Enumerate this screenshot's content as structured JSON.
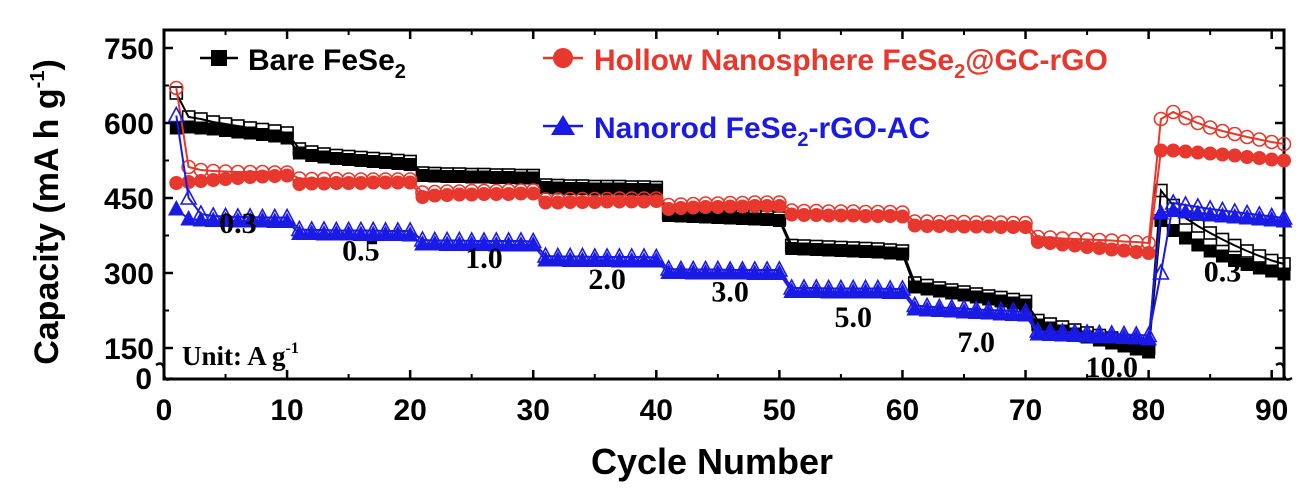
{
  "chart_data": {
    "type": "scatter",
    "xlabel": "Cycle Number",
    "ylabel": "Capacity (mA h g",
    "ylabel_sup": "-1",
    "ylabel_end": ")",
    "xlim": [
      0,
      91
    ],
    "ylim_upper": [
      100,
      800
    ],
    "x_ticks": [
      0,
      10,
      20,
      30,
      40,
      50,
      60,
      70,
      80,
      90
    ],
    "x_tick_labels": [
      "0",
      "10",
      "20",
      "30",
      "40",
      "50",
      "60",
      "70",
      "80",
      "90"
    ],
    "y_ticks": [
      150,
      300,
      450,
      600,
      750
    ],
    "y_tick_labels": [
      "150",
      "300",
      "450",
      "600",
      "750"
    ],
    "y_zero_label": "0",
    "axis_break": true,
    "grid": false,
    "legend_position": "top",
    "unit_label": {
      "prefix": "Unit: A g",
      "sup": "-1"
    },
    "rate_labels": [
      {
        "text": "0.3",
        "x": 6,
        "y": 380
      },
      {
        "text": "0.5",
        "x": 16,
        "y": 325
      },
      {
        "text": "1.0",
        "x": 26,
        "y": 310
      },
      {
        "text": "2.0",
        "x": 36,
        "y": 268
      },
      {
        "text": "3.0",
        "x": 46,
        "y": 243
      },
      {
        "text": "5.0",
        "x": 56,
        "y": 192
      },
      {
        "text": "7.0",
        "x": 66,
        "y": 142
      },
      {
        "text": "10.0",
        "x": 77,
        "y": 92
      },
      {
        "text": "0.3",
        "x": 86,
        "y": 283
      }
    ],
    "series": [
      {
        "name": "Bare FeSe",
        "name_sub": "2",
        "name_suffix": "",
        "marker": "square",
        "color": "#000000",
        "label_color": "#000000",
        "charge": [
          660,
          612,
          608,
          602,
          598,
          594,
          590,
          587,
          584,
          580,
          548,
          542,
          538,
          535,
          533,
          531,
          529,
          527,
          525,
          523,
          500,
          499,
          498,
          498,
          497,
          497,
          496,
          496,
          495,
          495,
          476,
          475,
          474,
          474,
          473,
          473,
          473,
          472,
          472,
          471,
          420,
          419,
          418,
          417,
          416,
          415,
          414,
          413,
          412,
          410,
          355,
          354,
          353,
          352,
          351,
          350,
          349,
          348,
          346,
          344,
          280,
          275,
          270,
          266,
          262,
          258,
          254,
          251,
          247,
          243,
          205,
          198,
          192,
          186,
          180,
          175,
          170,
          164,
          158,
          150,
          465,
          435,
          410,
          394,
          380,
          367,
          355,
          344,
          334,
          325,
          318
        ],
        "discharge": [
          590,
          592,
          590,
          588,
          585,
          582,
          580,
          577,
          574,
          570,
          540,
          535,
          532,
          529,
          527,
          525,
          523,
          521,
          519,
          517,
          495,
          494,
          493,
          493,
          492,
          492,
          491,
          491,
          490,
          490,
          471,
          470,
          469,
          469,
          468,
          468,
          468,
          467,
          467,
          466,
          415,
          414,
          413,
          412,
          411,
          410,
          409,
          408,
          407,
          405,
          349,
          348,
          347,
          346,
          345,
          344,
          343,
          342,
          340,
          338,
          272,
          268,
          264,
          260,
          256,
          252,
          248,
          244,
          240,
          236,
          196,
          190,
          184,
          178,
          172,
          166,
          160,
          154,
          148,
          142,
          405,
          385,
          370,
          356,
          344,
          334,
          325,
          317,
          310,
          304,
          298
        ]
      },
      {
        "name": "Hollow Nanosphere FeSe",
        "name_sub": "2",
        "name_suffix": "@GC-rGO",
        "marker": "circle",
        "color": "#e8372c",
        "label_color": "#e8372c",
        "charge": [
          670,
          512,
          506,
          504,
          503,
          502,
          502,
          502,
          501,
          501,
          489,
          488,
          488,
          488,
          487,
          487,
          487,
          487,
          487,
          487,
          461,
          462,
          463,
          463,
          464,
          464,
          464,
          465,
          465,
          465,
          447,
          447,
          448,
          448,
          448,
          448,
          449,
          449,
          449,
          449,
          436,
          437,
          438,
          439,
          439,
          440,
          440,
          441,
          441,
          441,
          425,
          424,
          424,
          423,
          423,
          423,
          422,
          422,
          422,
          421,
          403,
          403,
          402,
          402,
          402,
          401,
          401,
          401,
          400,
          400,
          372,
          371,
          369,
          368,
          367,
          366,
          365,
          363,
          362,
          360,
          608,
          622,
          610,
          600,
          591,
          584,
          578,
          572,
          567,
          562,
          558
        ],
        "discharge": [
          480,
          482,
          484,
          486,
          488,
          490,
          492,
          493,
          494,
          495,
          478,
          479,
          479,
          480,
          480,
          480,
          481,
          481,
          481,
          481,
          452,
          455,
          456,
          457,
          457,
          458,
          458,
          458,
          459,
          459,
          441,
          441,
          442,
          442,
          442,
          443,
          443,
          443,
          443,
          444,
          428,
          430,
          431,
          432,
          432,
          433,
          433,
          434,
          434,
          434,
          417,
          416,
          416,
          415,
          415,
          415,
          414,
          414,
          414,
          413,
          395,
          394,
          394,
          394,
          393,
          393,
          393,
          392,
          392,
          392,
          362,
          360,
          357,
          355,
          352,
          350,
          347,
          345,
          342,
          340,
          545,
          545,
          543,
          541,
          539,
          537,
          535,
          532,
          530,
          527,
          525
        ]
      },
      {
        "name": "Nanorod FeSe",
        "name_sub": "2",
        "name_suffix": "-rGO-AC",
        "marker": "triangle",
        "color": "#1a1ae6",
        "label_color": "#1a1ae6",
        "charge": [
          615,
          450,
          418,
          414,
          413,
          412,
          412,
          411,
          411,
          411,
          387,
          386,
          386,
          385,
          385,
          385,
          385,
          384,
          384,
          384,
          366,
          365,
          365,
          365,
          364,
          364,
          364,
          364,
          364,
          363,
          334,
          333,
          333,
          333,
          332,
          332,
          332,
          332,
          332,
          331,
          308,
          307,
          307,
          307,
          307,
          306,
          306,
          306,
          306,
          306,
          270,
          270,
          270,
          269,
          269,
          269,
          269,
          269,
          268,
          268,
          235,
          233,
          231,
          230,
          229,
          227,
          226,
          225,
          224,
          222,
          184,
          183,
          182,
          181,
          180,
          179,
          178,
          177,
          176,
          175,
          300,
          440,
          436,
          432,
          428,
          425,
          422,
          419,
          416,
          413,
          410
        ],
        "discharge": [
          428,
          408,
          406,
          405,
          405,
          404,
          404,
          404,
          403,
          403,
          379,
          379,
          378,
          378,
          378,
          377,
          377,
          377,
          377,
          376,
          358,
          358,
          357,
          357,
          357,
          357,
          356,
          356,
          356,
          356,
          326,
          326,
          325,
          325,
          325,
          325,
          324,
          324,
          324,
          324,
          301,
          301,
          300,
          300,
          300,
          300,
          300,
          299,
          299,
          299,
          263,
          263,
          263,
          262,
          262,
          262,
          262,
          262,
          261,
          261,
          228,
          226,
          225,
          224,
          222,
          221,
          220,
          218,
          217,
          216,
          178,
          177,
          176,
          175,
          174,
          173,
          172,
          171,
          170,
          168,
          420,
          425,
          422,
          419,
          416,
          414,
          412,
          410,
          408,
          406,
          404
        ]
      }
    ]
  }
}
